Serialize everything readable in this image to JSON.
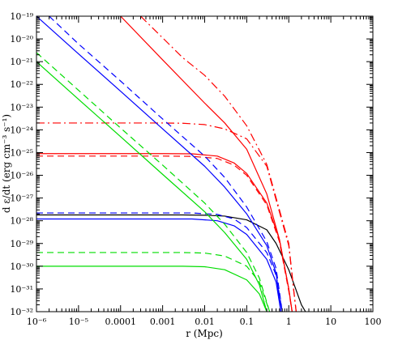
{
  "chart_data": {
    "type": "line",
    "title": "",
    "xlabel": "r (Mpc)",
    "ylabel": "d ε/dt (erg cm⁻³ s⁻¹)",
    "x_scale": "log",
    "y_scale": "log",
    "xlim": [
      1e-06,
      100
    ],
    "ylim": [
      1e-32,
      1e-19
    ],
    "x_ticks": [
      {
        "value": 1e-06,
        "label": "10⁻⁶"
      },
      {
        "value": 1e-05,
        "label": "10⁻⁵"
      },
      {
        "value": 0.0001,
        "label": "0.0001"
      },
      {
        "value": 0.001,
        "label": "0.001"
      },
      {
        "value": 0.01,
        "label": "0.01"
      },
      {
        "value": 0.1,
        "label": "0.1"
      },
      {
        "value": 1,
        "label": "1"
      },
      {
        "value": 10,
        "label": "10"
      },
      {
        "value": 100,
        "label": "100"
      }
    ],
    "y_ticks": [
      {
        "value": 1e-32,
        "label": "10⁻³²"
      },
      {
        "value": 1e-31,
        "label": "10⁻³¹"
      },
      {
        "value": 1e-30,
        "label": "10⁻³⁰"
      },
      {
        "value": 1e-29,
        "label": "10⁻²⁹"
      },
      {
        "value": 1e-28,
        "label": "10⁻²⁸"
      },
      {
        "value": 1e-27,
        "label": "10⁻²⁷"
      },
      {
        "value": 1e-26,
        "label": "10⁻²⁶"
      },
      {
        "value": 1e-25,
        "label": "10⁻²⁵"
      },
      {
        "value": 1e-24,
        "label": "10⁻²⁴"
      },
      {
        "value": 1e-23,
        "label": "10⁻²³"
      },
      {
        "value": 1e-22,
        "label": "10⁻²²"
      },
      {
        "value": 1e-21,
        "label": "10⁻²¹"
      },
      {
        "value": 1e-20,
        "label": "10⁻²⁰"
      },
      {
        "value": 1e-19,
        "label": "10⁻¹⁹"
      }
    ],
    "grid": false,
    "legend": "none",
    "series": [
      {
        "color": "#000000",
        "dash": "solid",
        "points": [
          [
            1e-06,
            1.8e-28
          ],
          [
            0.003,
            1.8e-28
          ],
          [
            0.01,
            1.75e-28
          ],
          [
            0.03,
            1.6e-28
          ],
          [
            0.1,
            1.1e-28
          ],
          [
            0.3,
            4e-29
          ],
          [
            0.5,
            1e-29
          ],
          [
            1,
            7e-31
          ],
          [
            2,
            2e-32
          ],
          [
            2.5,
            1e-32
          ]
        ]
      },
      {
        "color": "#ff0000",
        "dash": "solid",
        "points": [
          [
            0.0001,
            1e-19
          ],
          [
            0.001,
            1.2e-21
          ],
          [
            0.01,
            1.5e-23
          ],
          [
            0.03,
            2e-24
          ],
          [
            0.1,
            1.4e-25
          ],
          [
            0.3,
            1.5e-27
          ],
          [
            0.6,
            1.5e-29
          ],
          [
            1,
            1e-31
          ],
          [
            1.2,
            1e-32
          ]
        ]
      },
      {
        "color": "#ff0000",
        "dash": "dashdot",
        "points": [
          [
            0.0003,
            1e-19
          ],
          [
            0.003,
            1.5e-21
          ],
          [
            0.01,
            2.5e-22
          ],
          [
            0.03,
            3e-23
          ],
          [
            0.1,
            1.5e-24
          ],
          [
            0.3,
            3e-26
          ],
          [
            1,
            1e-29
          ],
          [
            1.3,
            1e-31
          ],
          [
            1.5,
            1e-32
          ]
        ]
      },
      {
        "color": "#ff0000",
        "dash": "dashdot",
        "points": [
          [
            1e-06,
            2e-24
          ],
          [
            0.001,
            2e-24
          ],
          [
            0.003,
            1.95e-24
          ],
          [
            0.01,
            1.7e-24
          ],
          [
            0.03,
            1.1e-24
          ],
          [
            0.1,
            4e-25
          ],
          [
            0.3,
            2.5e-26
          ],
          [
            1,
            8e-30
          ],
          [
            1.3,
            1e-31
          ],
          [
            1.5,
            1e-32
          ]
        ]
      },
      {
        "color": "#ff0000",
        "dash": "solid",
        "points": [
          [
            1e-06,
            9e-26
          ],
          [
            0.001,
            9e-26
          ],
          [
            0.005,
            8.8e-26
          ],
          [
            0.02,
            7e-26
          ],
          [
            0.05,
            3.5e-26
          ],
          [
            0.1,
            1.2e-26
          ],
          [
            0.3,
            6e-28
          ],
          [
            0.6,
            1.5e-29
          ],
          [
            1,
            1e-31
          ],
          [
            1.2,
            1e-32
          ]
        ]
      },
      {
        "color": "#ff0000",
        "dash": "dashed",
        "points": [
          [
            1e-06,
            7e-26
          ],
          [
            0.001,
            7e-26
          ],
          [
            0.005,
            6.8e-26
          ],
          [
            0.02,
            5.5e-26
          ],
          [
            0.05,
            2.8e-26
          ],
          [
            0.1,
            1e-26
          ],
          [
            0.3,
            5e-28
          ],
          [
            0.6,
            1.2e-29
          ],
          [
            1,
            8e-32
          ],
          [
            1.2,
            1e-32
          ]
        ]
      },
      {
        "color": "#0000ff",
        "dash": "solid",
        "points": [
          [
            1e-06,
            1e-19
          ],
          [
            1e-05,
            2.2e-21
          ],
          [
            0.0001,
            5e-23
          ],
          [
            0.001,
            1.1e-24
          ],
          [
            0.01,
            2.5e-26
          ],
          [
            0.03,
            3e-27
          ],
          [
            0.1,
            2e-28
          ],
          [
            0.3,
            8e-30
          ],
          [
            0.5,
            5e-31
          ],
          [
            0.65,
            1e-32
          ]
        ]
      },
      {
        "color": "#0000ff",
        "dash": "dashed",
        "points": [
          [
            2e-06,
            1e-19
          ],
          [
            1e-05,
            6e-21
          ],
          [
            0.0001,
            1.4e-22
          ],
          [
            0.001,
            3e-24
          ],
          [
            0.01,
            7e-26
          ],
          [
            0.03,
            8e-27
          ],
          [
            0.1,
            4e-28
          ],
          [
            0.3,
            1.2e-29
          ],
          [
            0.5,
            8e-31
          ],
          [
            0.7,
            1e-32
          ]
        ]
      },
      {
        "color": "#0000ff",
        "dash": "solid",
        "points": [
          [
            1e-06,
            1.2e-28
          ],
          [
            0.005,
            1.2e-28
          ],
          [
            0.02,
            1e-28
          ],
          [
            0.05,
            6e-29
          ],
          [
            0.1,
            2.5e-29
          ],
          [
            0.3,
            2e-30
          ],
          [
            0.5,
            2e-31
          ],
          [
            0.65,
            1e-32
          ]
        ]
      },
      {
        "color": "#0000ff",
        "dash": "dashed",
        "points": [
          [
            1e-06,
            2.2e-28
          ],
          [
            0.005,
            2.2e-28
          ],
          [
            0.02,
            1.9e-28
          ],
          [
            0.05,
            1.2e-28
          ],
          [
            0.1,
            5e-29
          ],
          [
            0.3,
            4e-30
          ],
          [
            0.5,
            4e-31
          ],
          [
            0.7,
            1e-32
          ]
        ]
      },
      {
        "color": "#00dd00",
        "dash": "solid",
        "points": [
          [
            1e-06,
            1e-21
          ],
          [
            1e-05,
            2.2e-23
          ],
          [
            0.0001,
            5e-25
          ],
          [
            0.001,
            1.1e-26
          ],
          [
            0.01,
            2.5e-28
          ],
          [
            0.03,
            3e-29
          ],
          [
            0.1,
            2e-30
          ],
          [
            0.2,
            1.5e-31
          ],
          [
            0.3,
            1e-32
          ]
        ]
      },
      {
        "color": "#00dd00",
        "dash": "dashed",
        "points": [
          [
            1e-06,
            2.5e-21
          ],
          [
            1e-05,
            5.5e-23
          ],
          [
            0.0001,
            1.2e-24
          ],
          [
            0.001,
            2.8e-26
          ],
          [
            0.01,
            6e-28
          ],
          [
            0.03,
            7e-29
          ],
          [
            0.1,
            4e-30
          ],
          [
            0.2,
            3e-31
          ],
          [
            0.35,
            1e-32
          ]
        ]
      },
      {
        "color": "#00dd00",
        "dash": "solid",
        "points": [
          [
            1e-06,
            1e-30
          ],
          [
            0.003,
            1e-30
          ],
          [
            0.01,
            9.5e-31
          ],
          [
            0.03,
            7e-31
          ],
          [
            0.1,
            2.5e-31
          ],
          [
            0.2,
            6e-32
          ],
          [
            0.3,
            1e-32
          ]
        ]
      },
      {
        "color": "#00dd00",
        "dash": "dashed",
        "points": [
          [
            1e-06,
            4e-30
          ],
          [
            0.003,
            4e-30
          ],
          [
            0.01,
            3.8e-30
          ],
          [
            0.03,
            2.8e-30
          ],
          [
            0.1,
            1e-30
          ],
          [
            0.2,
            2e-31
          ],
          [
            0.35,
            1e-32
          ]
        ]
      }
    ]
  }
}
